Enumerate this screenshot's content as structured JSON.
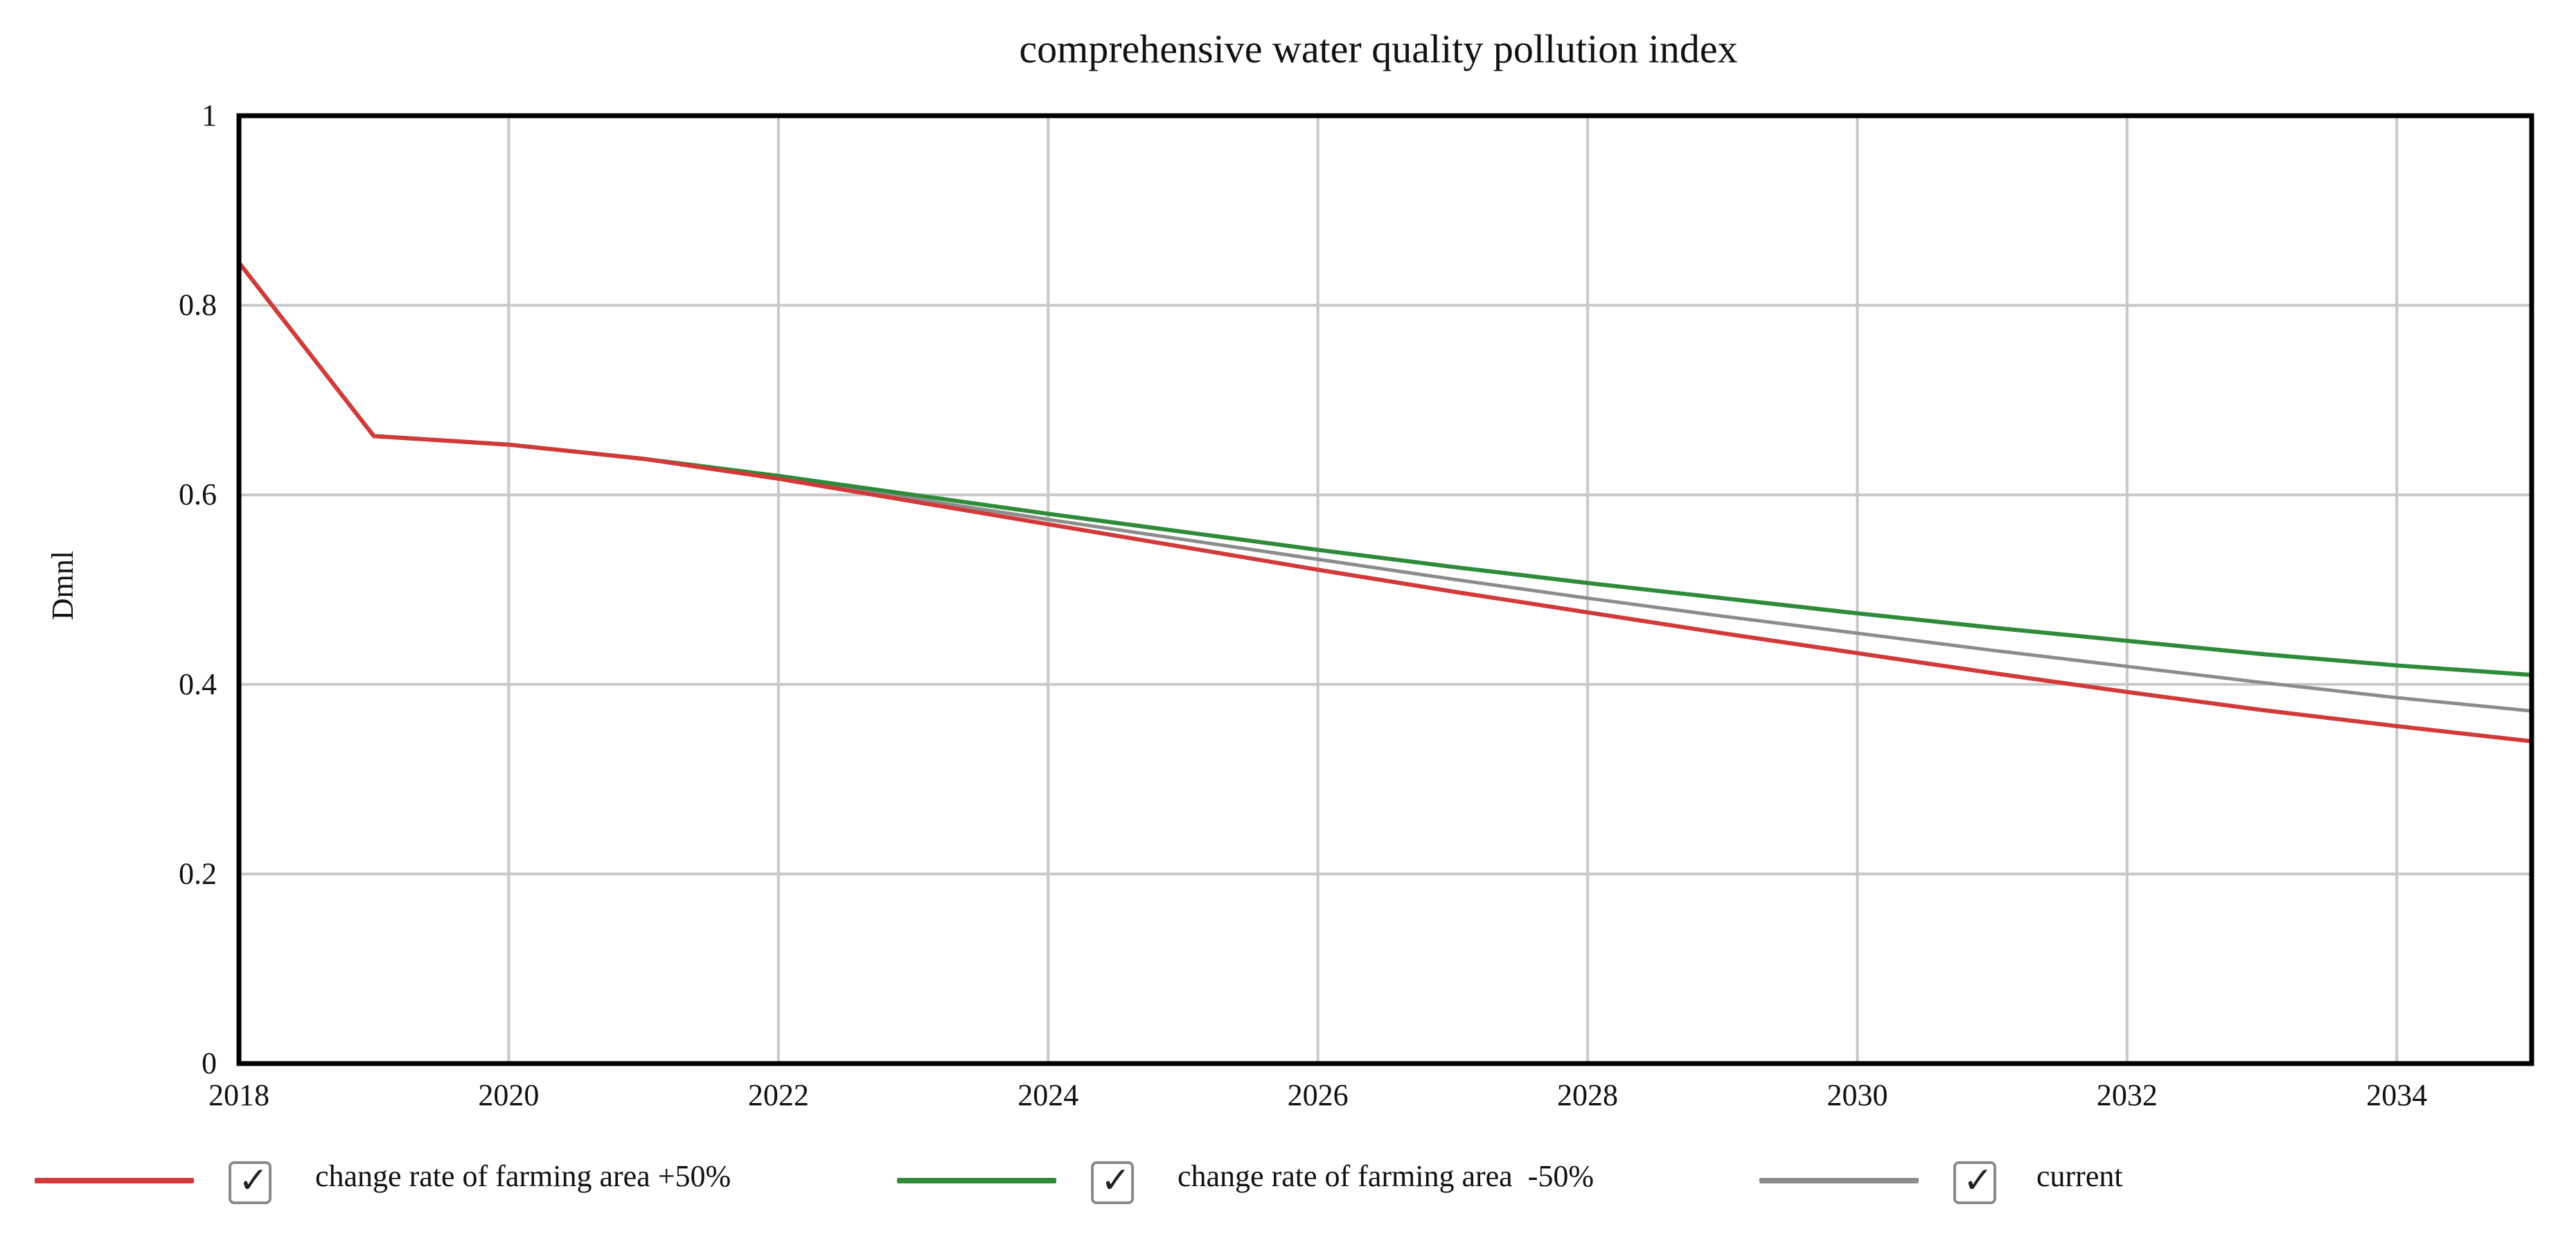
{
  "chart_data": {
    "type": "line",
    "title": "comprehensive water quality pollution index",
    "xlabel": "",
    "ylabel": "Dmnl",
    "xlim": [
      2018,
      2035
    ],
    "ylim": [
      0,
      1
    ],
    "x_ticks": [
      2018,
      2020,
      2022,
      2024,
      2026,
      2028,
      2030,
      2032,
      2034
    ],
    "x_tick_labels": [
      "2018",
      "2020",
      "2022",
      "2024",
      "2026",
      "2028",
      "2030",
      "2032",
      "2034"
    ],
    "y_ticks": [
      0,
      0.2,
      0.4,
      0.6,
      0.8,
      1
    ],
    "y_tick_labels": [
      "0",
      "0.2",
      "0.4",
      "0.6",
      "0.8",
      "1"
    ],
    "x_gridlines": [
      2018,
      2020,
      2022,
      2024,
      2026,
      2028,
      2030,
      2032,
      2034
    ],
    "y_gridlines": [
      0.2,
      0.4,
      0.6,
      0.8
    ],
    "grid": true,
    "legend_position": "bottom",
    "x": [
      2018,
      2019,
      2020,
      2021,
      2022,
      2023,
      2024,
      2025,
      2026,
      2027,
      2028,
      2029,
      2030,
      2031,
      2032,
      2033,
      2034,
      2035
    ],
    "series": [
      {
        "name": "change rate of farming area +50%",
        "color": "#d23a3a",
        "values": [
          0.845,
          0.662,
          0.653,
          0.638,
          0.617,
          0.593,
          0.569,
          0.545,
          0.521,
          0.498,
          0.476,
          0.454,
          0.433,
          0.412,
          0.392,
          0.373,
          0.356,
          0.34
        ]
      },
      {
        "name": "change rate of farming area  -50%",
        "color": "#2e8b3a",
        "values": [
          0.845,
          0.662,
          0.653,
          0.638,
          0.62,
          0.6,
          0.58,
          0.561,
          0.542,
          0.524,
          0.507,
          0.491,
          0.475,
          0.46,
          0.446,
          0.432,
          0.42,
          0.41
        ]
      },
      {
        "name": "current",
        "color": "#8c8c8c",
        "values": [
          0.845,
          0.662,
          0.653,
          0.638,
          0.618,
          0.596,
          0.574,
          0.553,
          0.532,
          0.511,
          0.491,
          0.472,
          0.454,
          0.436,
          0.419,
          0.402,
          0.386,
          0.372
        ]
      }
    ]
  },
  "legend": {
    "check_mark": "✓",
    "check_icon": "checkbox-checked-icon"
  }
}
